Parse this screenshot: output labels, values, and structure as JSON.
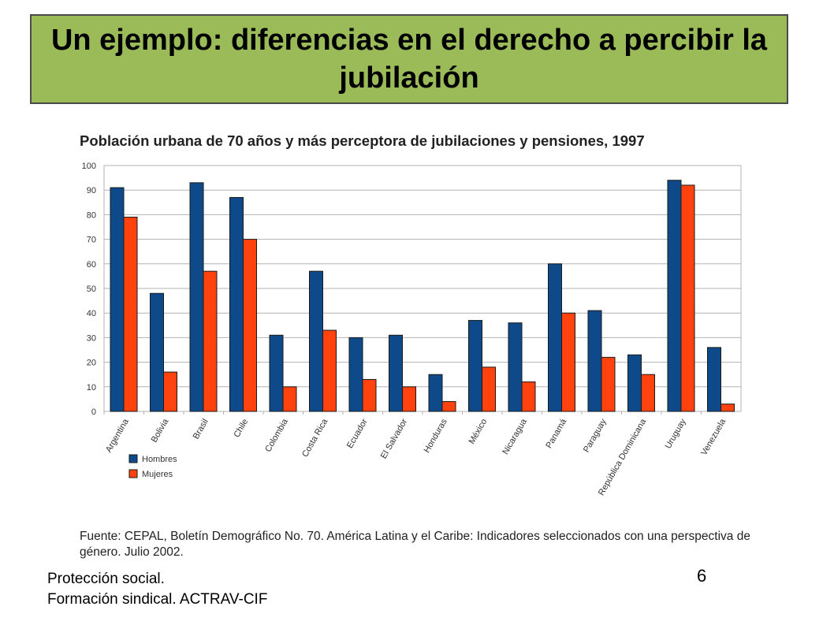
{
  "slide": {
    "title": "Un ejemplo: diferencias en el derecho a percibir la jubilación",
    "source": "Fuente: CEPAL, Boletín Demográfico No. 70. América Latina y el Caribe: Indicadores seleccionados con una perspectiva de género. Julio 2002.",
    "footer_line1": "Protección social.",
    "footer_line2": "Formación sindical.  ACTRAV-CIF",
    "page_number": "6",
    "header_color": "#9bbb59"
  },
  "chart_data": {
    "type": "bar",
    "title": "Población urbana de 70 años y más perceptora de jubilaciones y pensiones, 1997",
    "xlabel": "",
    "ylabel": "",
    "ylim": [
      0,
      100
    ],
    "yticks": [
      0,
      10,
      20,
      30,
      40,
      50,
      60,
      70,
      80,
      90,
      100
    ],
    "grid": true,
    "legend_position": "bottom-left",
    "categories": [
      "Argentina",
      "Bolivia",
      "Brasil",
      "Chile",
      "Colombia",
      "Costa Rica",
      "Ecuador",
      "El Salvador",
      "Honduras",
      "México",
      "Nicaragua",
      "Panamá",
      "Paraguay",
      "República Dominicana",
      "Uruguay",
      "Venezuela"
    ],
    "series": [
      {
        "name": "Hombres",
        "color": "#0e4a8a",
        "values": [
          91,
          48,
          93,
          87,
          31,
          57,
          30,
          31,
          15,
          37,
          36,
          60,
          41,
          23,
          94,
          26
        ]
      },
      {
        "name": "Mujeres",
        "color": "#ff420e",
        "values": [
          79,
          16,
          57,
          70,
          10,
          33,
          13,
          10,
          4,
          18,
          12,
          40,
          22,
          15,
          92,
          3
        ]
      }
    ]
  }
}
